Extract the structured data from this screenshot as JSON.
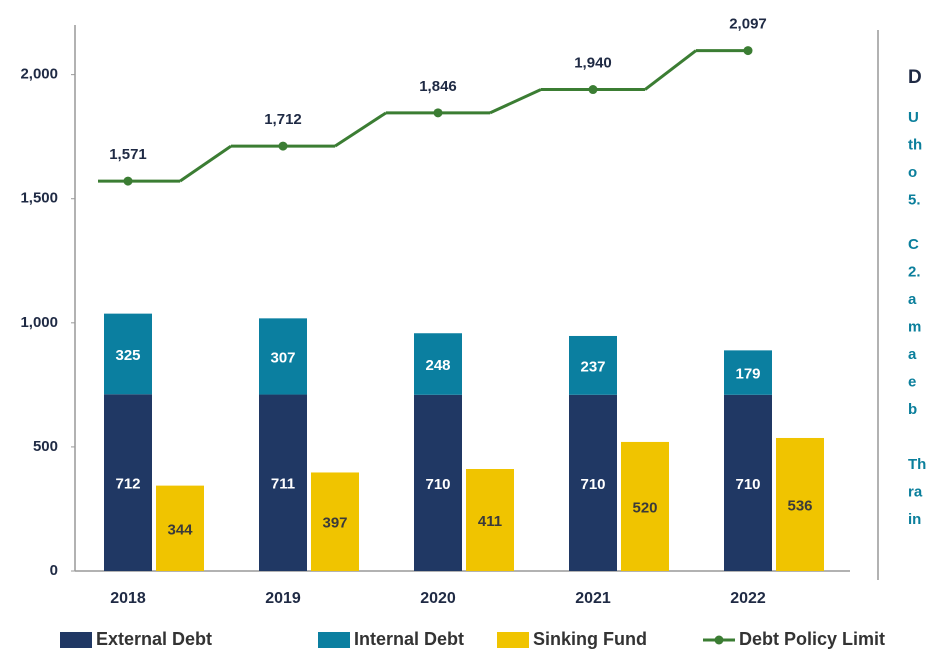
{
  "chart_data": {
    "type": "bar",
    "categories": [
      "2018",
      "2019",
      "2020",
      "2021",
      "2022"
    ],
    "series": [
      {
        "name": "External Debt",
        "color": "#203864",
        "values": [
          712,
          711,
          710,
          710,
          710
        ],
        "stack": "debt"
      },
      {
        "name": "Internal Debt",
        "color": "#0b7fa0",
        "values": [
          325,
          307,
          248,
          237,
          179
        ],
        "stack": "debt"
      },
      {
        "name": "Sinking Fund",
        "color": "#f0c400",
        "values": [
          344,
          397,
          411,
          520,
          536
        ],
        "stack": "fund"
      },
      {
        "name": "Debt Policy Limit",
        "color": "#3b7d33",
        "type": "line",
        "values": [
          1571,
          1712,
          1846,
          1940,
          2097
        ],
        "value_labels": [
          "1,571",
          "1,712",
          "1,846",
          "1,940",
          "2,097"
        ]
      }
    ],
    "ylim": [
      0,
      2200
    ],
    "yticks": [
      0,
      500,
      {
        "value": 1000,
        "label": "1,000"
      },
      {
        "value": 1500,
        "label": "1,500"
      },
      {
        "value": 2000,
        "label": "2,000"
      }
    ],
    "legend": "bottom"
  },
  "panel": {
    "title": "D",
    "paragraphs": [
      [
        "U",
        "th",
        "o",
        "5."
      ],
      [
        "C",
        "2.",
        "a",
        "m",
        "a",
        "e",
        "b"
      ],
      [
        "Th",
        "ra",
        "in"
      ]
    ]
  }
}
